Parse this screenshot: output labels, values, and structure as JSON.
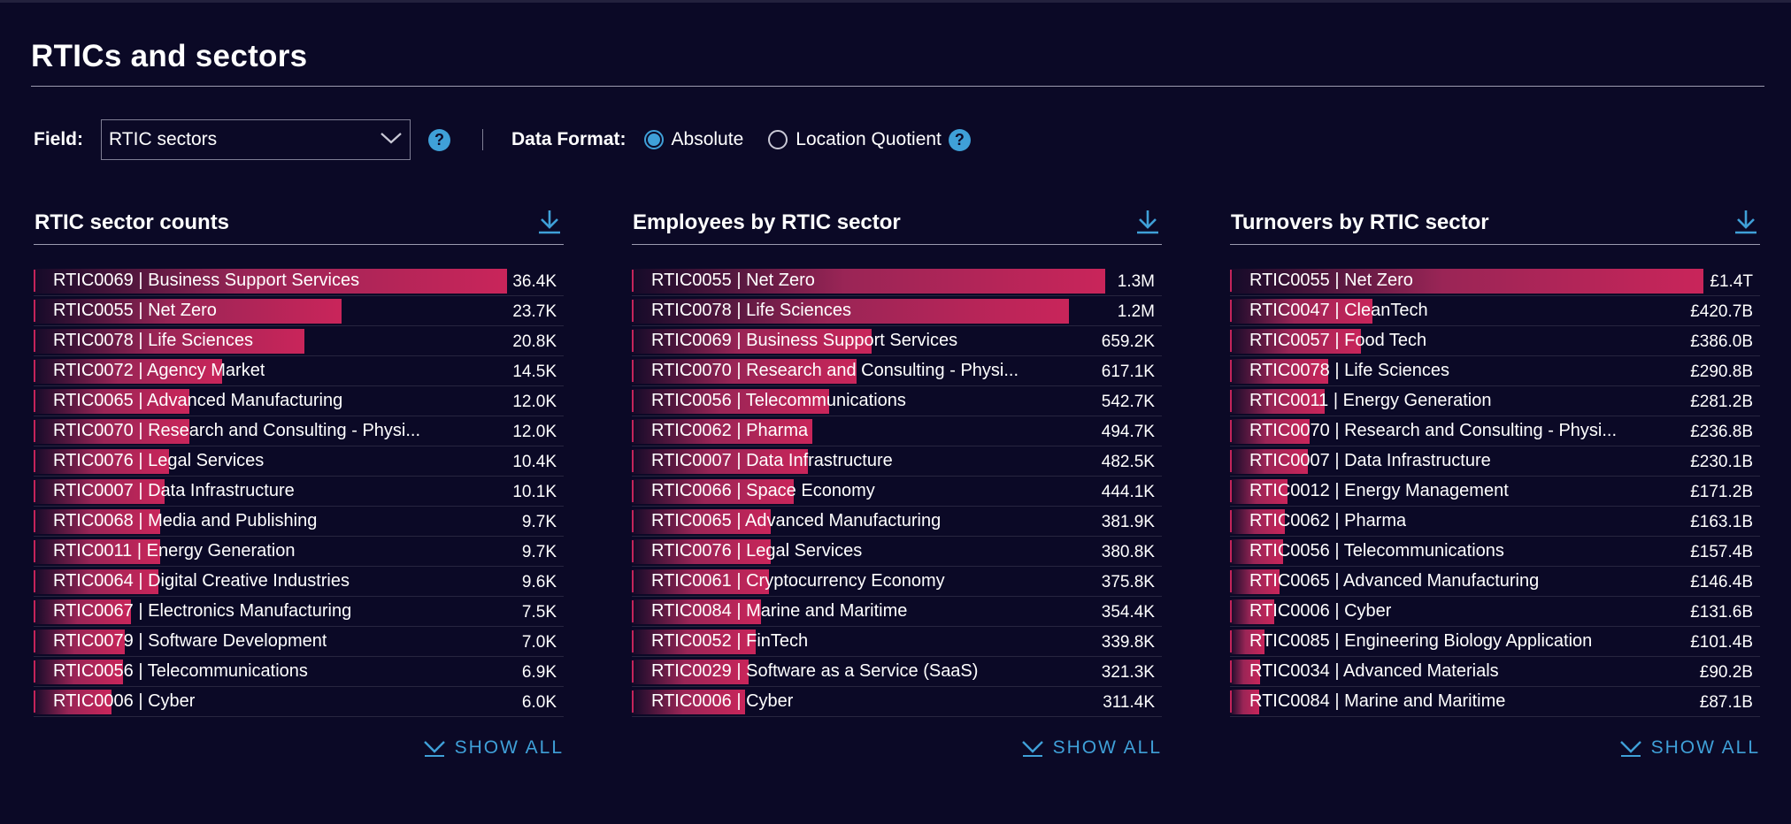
{
  "page": {
    "title": "RTICs and sectors"
  },
  "controls": {
    "field_label": "Field:",
    "field_value": "RTIC sectors",
    "format_label": "Data Format:",
    "format_options": [
      {
        "label": "Absolute",
        "selected": true
      },
      {
        "label": "Location Quotient",
        "selected": false
      }
    ]
  },
  "colors": {
    "background": "#0b0926",
    "bar": "#c9255a",
    "accent": "#3fa0d8"
  },
  "panels": [
    {
      "title": "RTIC sector counts",
      "show_all": "SHOW ALL",
      "max": 36400,
      "rows": [
        {
          "label": "RTIC0069 | Business Support Services",
          "value": "36.4K",
          "n": 36400
        },
        {
          "label": "RTIC0055 | Net Zero",
          "value": "23.7K",
          "n": 23700
        },
        {
          "label": "RTIC0078 | Life Sciences",
          "value": "20.8K",
          "n": 20800
        },
        {
          "label": "RTIC0072 | Agency Market",
          "value": "14.5K",
          "n": 14500
        },
        {
          "label": "RTIC0065 | Advanced Manufacturing",
          "value": "12.0K",
          "n": 12000
        },
        {
          "label": "RTIC0070 | Research and Consulting - Physi...",
          "value": "12.0K",
          "n": 12000
        },
        {
          "label": "RTIC0076 | Legal Services",
          "value": "10.4K",
          "n": 10400
        },
        {
          "label": "RTIC0007 | Data Infrastructure",
          "value": "10.1K",
          "n": 10100
        },
        {
          "label": "RTIC0068 | Media and Publishing",
          "value": "9.7K",
          "n": 9700
        },
        {
          "label": "RTIC0011 | Energy Generation",
          "value": "9.7K",
          "n": 9700
        },
        {
          "label": "RTIC0064 | Digital Creative Industries",
          "value": "9.6K",
          "n": 9600
        },
        {
          "label": "RTIC0067 | Electronics Manufacturing",
          "value": "7.5K",
          "n": 7500
        },
        {
          "label": "RTIC0079 | Software Development",
          "value": "7.0K",
          "n": 7000
        },
        {
          "label": "RTIC0056 | Telecommunications",
          "value": "6.9K",
          "n": 6900
        },
        {
          "label": "RTIC0006 | Cyber",
          "value": "6.0K",
          "n": 6000
        }
      ]
    },
    {
      "title": "Employees by RTIC sector",
      "show_all": "SHOW ALL",
      "max": 1300000,
      "rows": [
        {
          "label": "RTIC0055 | Net Zero",
          "value": "1.3M",
          "n": 1300000
        },
        {
          "label": "RTIC0078 | Life Sciences",
          "value": "1.2M",
          "n": 1200000
        },
        {
          "label": "RTIC0069 | Business Support Services",
          "value": "659.2K",
          "n": 659200
        },
        {
          "label": "RTIC0070 | Research and Consulting - Physi...",
          "value": "617.1K",
          "n": 617100
        },
        {
          "label": "RTIC0056 | Telecommunications",
          "value": "542.7K",
          "n": 542700
        },
        {
          "label": "RTIC0062 | Pharma",
          "value": "494.7K",
          "n": 494700
        },
        {
          "label": "RTIC0007 | Data Infrastructure",
          "value": "482.5K",
          "n": 482500
        },
        {
          "label": "RTIC0066 | Space Economy",
          "value": "444.1K",
          "n": 444100
        },
        {
          "label": "RTIC0065 | Advanced Manufacturing",
          "value": "381.9K",
          "n": 381900
        },
        {
          "label": "RTIC0076 | Legal Services",
          "value": "380.8K",
          "n": 380800
        },
        {
          "label": "RTIC0061 | Cryptocurrency Economy",
          "value": "375.8K",
          "n": 375800
        },
        {
          "label": "RTIC0084 | Marine and Maritime",
          "value": "354.4K",
          "n": 354400
        },
        {
          "label": "RTIC0052 | FinTech",
          "value": "339.8K",
          "n": 339800
        },
        {
          "label": "RTIC0029 | Software as a Service (SaaS)",
          "value": "321.3K",
          "n": 321300
        },
        {
          "label": "RTIC0006 | Cyber",
          "value": "311.4K",
          "n": 311400
        }
      ]
    },
    {
      "title": "Turnovers by RTIC sector",
      "show_all": "SHOW ALL",
      "max": 1400,
      "rows": [
        {
          "label": "RTIC0055 | Net Zero",
          "value": "£1.4T",
          "n": 1400
        },
        {
          "label": "RTIC0047 | CleanTech",
          "value": "£420.7B",
          "n": 420.7
        },
        {
          "label": "RTIC0057 | Food Tech",
          "value": "£386.0B",
          "n": 386.0
        },
        {
          "label": "RTIC0078 | Life Sciences",
          "value": "£290.8B",
          "n": 290.8
        },
        {
          "label": "RTIC0011 | Energy Generation",
          "value": "£281.2B",
          "n": 281.2
        },
        {
          "label": "RTIC0070 | Research and Consulting - Physi...",
          "value": "£236.8B",
          "n": 236.8
        },
        {
          "label": "RTIC0007 | Data Infrastructure",
          "value": "£230.1B",
          "n": 230.1
        },
        {
          "label": "RTIC0012 | Energy Management",
          "value": "£171.2B",
          "n": 171.2
        },
        {
          "label": "RTIC0062 | Pharma",
          "value": "£163.1B",
          "n": 163.1
        },
        {
          "label": "RTIC0056 | Telecommunications",
          "value": "£157.4B",
          "n": 157.4
        },
        {
          "label": "RTIC0065 | Advanced Manufacturing",
          "value": "£146.4B",
          "n": 146.4
        },
        {
          "label": "RTIC0006 | Cyber",
          "value": "£131.6B",
          "n": 131.6
        },
        {
          "label": "RTIC0085 | Engineering Biology Application",
          "value": "£101.4B",
          "n": 101.4
        },
        {
          "label": "RTIC0034 | Advanced Materials",
          "value": "£90.2B",
          "n": 90.2
        },
        {
          "label": "RTIC0084 | Marine and Maritime",
          "value": "£87.1B",
          "n": 87.1
        }
      ]
    }
  ]
}
